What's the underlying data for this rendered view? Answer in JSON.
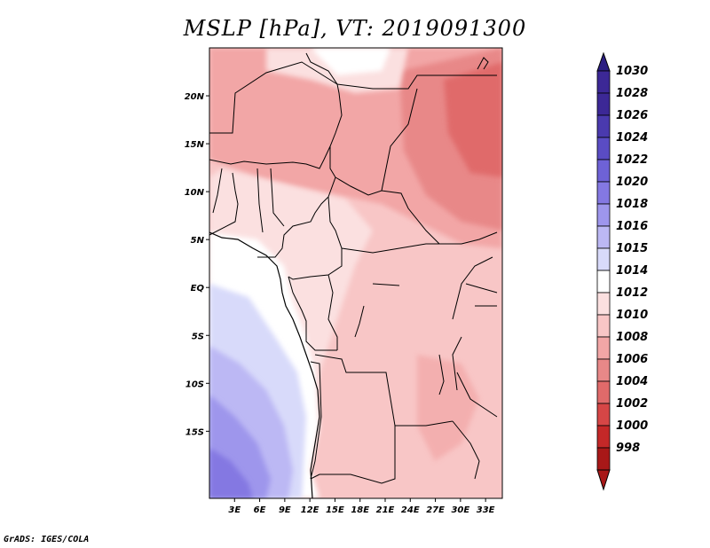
{
  "title": "MSLP [hPa], VT: 2019091300",
  "credit": "GrADS: IGES/COLA",
  "map": {
    "variable": "MSLP",
    "units": "hPa",
    "valid_time": "2019091300",
    "lat_range": [
      -22,
      25
    ],
    "lon_range": [
      0,
      35
    ],
    "lat_ticks": [
      {
        "value": 20,
        "label": "20N"
      },
      {
        "value": 15,
        "label": "15N"
      },
      {
        "value": 10,
        "label": "10N"
      },
      {
        "value": 5,
        "label": "5N"
      },
      {
        "value": 0,
        "label": "EQ"
      },
      {
        "value": -5,
        "label": "5S"
      },
      {
        "value": -10,
        "label": "10S"
      },
      {
        "value": -15,
        "label": "15S"
      }
    ],
    "lon_ticks": [
      {
        "value": 3,
        "label": "3E"
      },
      {
        "value": 6,
        "label": "6E"
      },
      {
        "value": 9,
        "label": "9E"
      },
      {
        "value": 12,
        "label": "12E"
      },
      {
        "value": 15,
        "label": "15E"
      },
      {
        "value": 18,
        "label": "18E"
      },
      {
        "value": 21,
        "label": "21E"
      },
      {
        "value": 24,
        "label": "24E"
      },
      {
        "value": 27,
        "label": "27E"
      },
      {
        "value": 30,
        "label": "30E"
      },
      {
        "value": 33,
        "label": "33E"
      }
    ]
  },
  "colorbar": {
    "levels": [
      {
        "label": "1030",
        "color": "#3c2896"
      },
      {
        "label": "1028",
        "color": "#3c2896"
      },
      {
        "label": "1026",
        "color": "#4a3aae"
      },
      {
        "label": "1024",
        "color": "#5a4cc4"
      },
      {
        "label": "1022",
        "color": "#6e62d6"
      },
      {
        "label": "1020",
        "color": "#8478e2"
      },
      {
        "label": "1018",
        "color": "#9e96ec"
      },
      {
        "label": "1016",
        "color": "#bcb8f4"
      },
      {
        "label": "1015",
        "color": "#d8dafa"
      },
      {
        "label": "1014",
        "color": "#ffffff"
      },
      {
        "label": "1012",
        "color": "#fbe0e0"
      },
      {
        "label": "1010",
        "color": "#f8c6c6"
      },
      {
        "label": "1008",
        "color": "#f2a6a6"
      },
      {
        "label": "1006",
        "color": "#e88888"
      },
      {
        "label": "1004",
        "color": "#e06a6a"
      },
      {
        "label": "1002",
        "color": "#d64646"
      },
      {
        "label": "1000",
        "color": "#c42828"
      },
      {
        "label": "998",
        "color": "#a81818"
      }
    ],
    "top_arrow_color": "#2c1e82",
    "bottom_arrow_color": "#a81818"
  }
}
